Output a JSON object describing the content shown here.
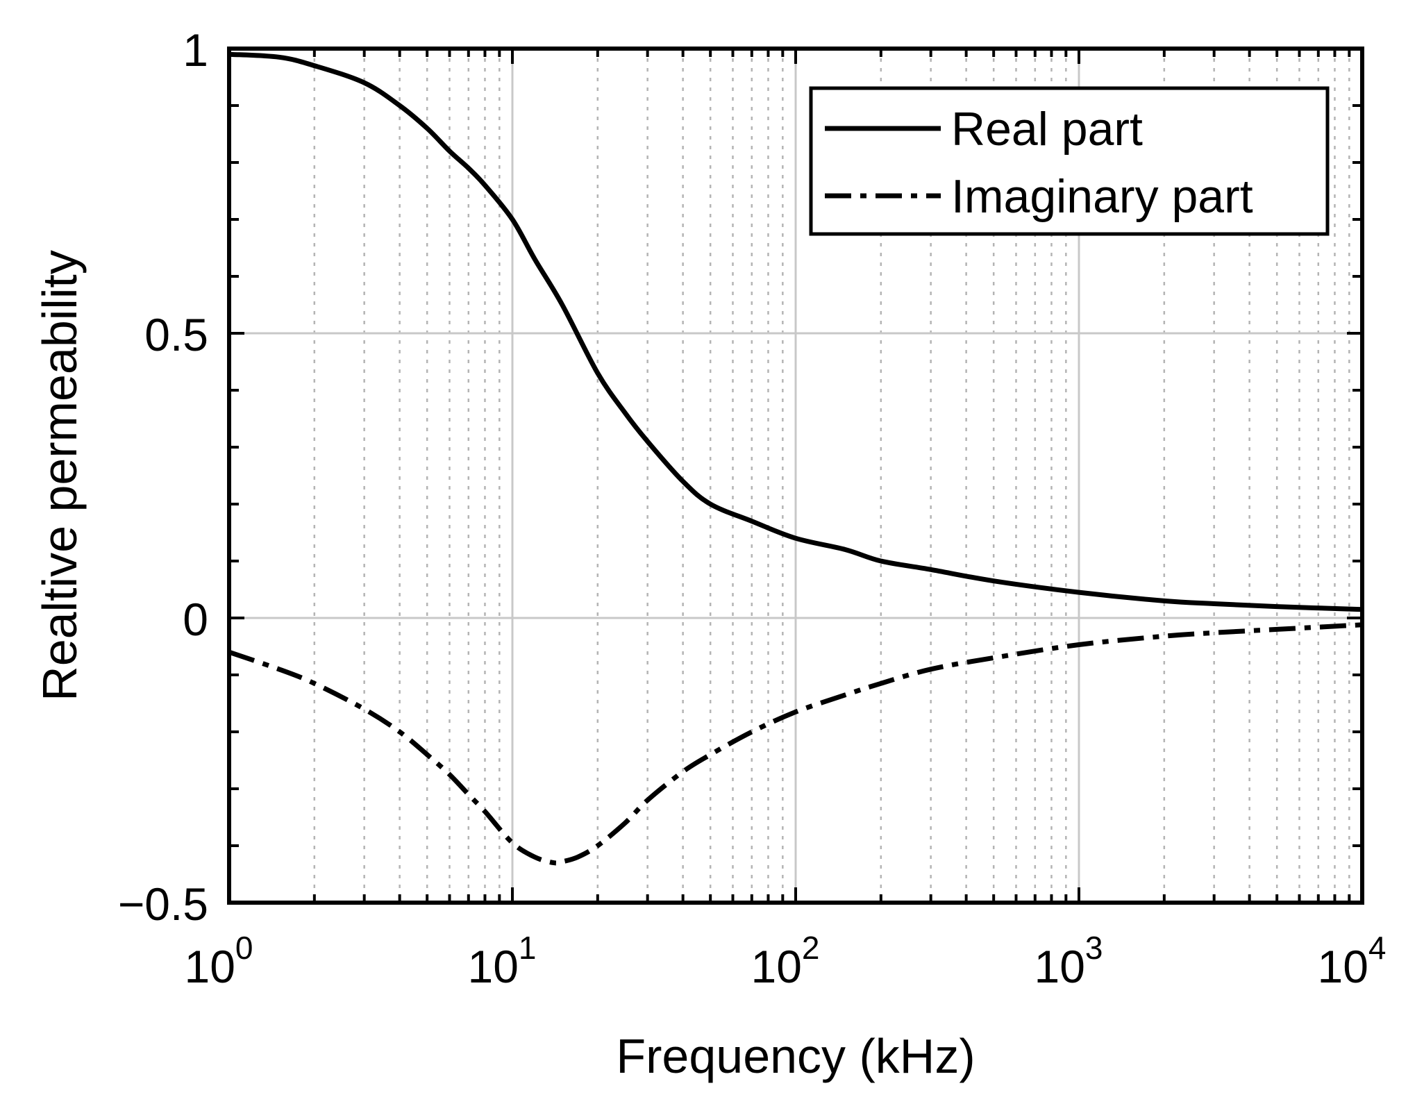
{
  "chart_data": {
    "type": "line",
    "title": "",
    "xlabel": "Frequency (kHz)",
    "ylabel": "Realtive permeability",
    "xscale": "log",
    "xlim": [
      1,
      10000
    ],
    "ylim": [
      -0.5,
      1
    ],
    "grid": true,
    "legend_position": "top-right",
    "x_ticks": [
      {
        "base": "10",
        "exp": "0",
        "value": 1
      },
      {
        "base": "10",
        "exp": "1",
        "value": 10
      },
      {
        "base": "10",
        "exp": "2",
        "value": 100
      },
      {
        "base": "10",
        "exp": "3",
        "value": 1000
      },
      {
        "base": "10",
        "exp": "4",
        "value": 10000
      }
    ],
    "y_ticks": [
      {
        "label": "1",
        "value": 1
      },
      {
        "label": "0.5",
        "value": 0.5
      },
      {
        "label": "0",
        "value": 0
      },
      {
        "label": "−0.5",
        "value": -0.5
      }
    ],
    "series": [
      {
        "name": "Real part",
        "style": "solid",
        "x": [
          1,
          1.5,
          2,
          3,
          4,
          5,
          6,
          7,
          8,
          10,
          12,
          15,
          20,
          25,
          30,
          40,
          50,
          70,
          100,
          150,
          200,
          300,
          500,
          1000,
          2000,
          3000,
          5000,
          10000
        ],
        "values": [
          0.99,
          0.985,
          0.97,
          0.94,
          0.9,
          0.86,
          0.82,
          0.79,
          0.76,
          0.7,
          0.63,
          0.55,
          0.43,
          0.36,
          0.31,
          0.24,
          0.2,
          0.17,
          0.14,
          0.12,
          0.1,
          0.085,
          0.065,
          0.045,
          0.03,
          0.025,
          0.02,
          0.015
        ]
      },
      {
        "name": "Imaginary part",
        "style": "dashdot",
        "x": [
          1,
          1.5,
          2,
          3,
          4,
          5,
          6,
          7,
          8,
          10,
          12,
          14,
          15,
          17,
          20,
          25,
          30,
          40,
          50,
          70,
          100,
          150,
          200,
          300,
          500,
          1000,
          2000,
          3000,
          5000,
          10000
        ],
        "values": [
          -0.06,
          -0.09,
          -0.115,
          -0.16,
          -0.2,
          -0.24,
          -0.275,
          -0.31,
          -0.34,
          -0.395,
          -0.42,
          -0.43,
          -0.428,
          -0.42,
          -0.4,
          -0.36,
          -0.32,
          -0.27,
          -0.24,
          -0.2,
          -0.165,
          -0.135,
          -0.115,
          -0.09,
          -0.07,
          -0.047,
          -0.032,
          -0.026,
          -0.02,
          -0.012
        ]
      }
    ]
  }
}
